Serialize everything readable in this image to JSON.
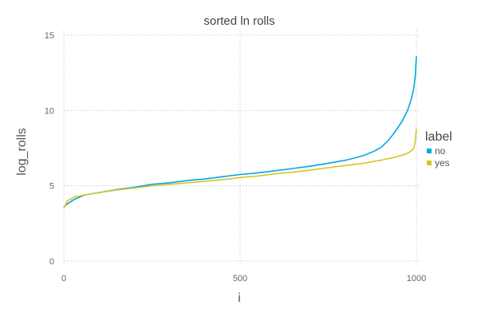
{
  "chart_data": {
    "type": "line",
    "title": "sorted ln rolls",
    "xlabel": "i",
    "ylabel": "log_rolls",
    "xlim": [
      0,
      1000
    ],
    "ylim": [
      0,
      15
    ],
    "xticks": [
      0,
      500,
      1000
    ],
    "yticks": [
      0,
      5,
      10,
      15
    ],
    "grid": true,
    "legend": {
      "title": "label",
      "placement": "right"
    },
    "series": [
      {
        "name": "no",
        "color": "#00a8e0",
        "x": [
          0,
          10,
          30,
          60,
          100,
          150,
          200,
          250,
          300,
          350,
          400,
          450,
          500,
          550,
          600,
          650,
          700,
          750,
          800,
          850,
          880,
          900,
          920,
          940,
          960,
          975,
          985,
          993,
          997,
          1000
        ],
        "y": [
          3.6,
          3.8,
          4.1,
          4.4,
          4.55,
          4.75,
          4.9,
          5.1,
          5.2,
          5.35,
          5.45,
          5.6,
          5.75,
          5.85,
          6.0,
          6.15,
          6.3,
          6.5,
          6.7,
          7.0,
          7.3,
          7.55,
          8.0,
          8.6,
          9.3,
          10.0,
          10.7,
          11.5,
          12.4,
          13.6
        ]
      },
      {
        "name": "yes",
        "color": "#d4c52a",
        "x": [
          0,
          10,
          30,
          60,
          100,
          150,
          200,
          250,
          300,
          350,
          400,
          450,
          500,
          550,
          600,
          650,
          700,
          750,
          800,
          850,
          900,
          940,
          970,
          985,
          993,
          997,
          1000
        ],
        "y": [
          3.5,
          4.0,
          4.25,
          4.4,
          4.55,
          4.72,
          4.85,
          5.0,
          5.1,
          5.2,
          5.3,
          5.4,
          5.55,
          5.65,
          5.8,
          5.9,
          6.05,
          6.2,
          6.35,
          6.5,
          6.7,
          6.9,
          7.1,
          7.3,
          7.5,
          8.0,
          8.8
        ]
      }
    ]
  }
}
